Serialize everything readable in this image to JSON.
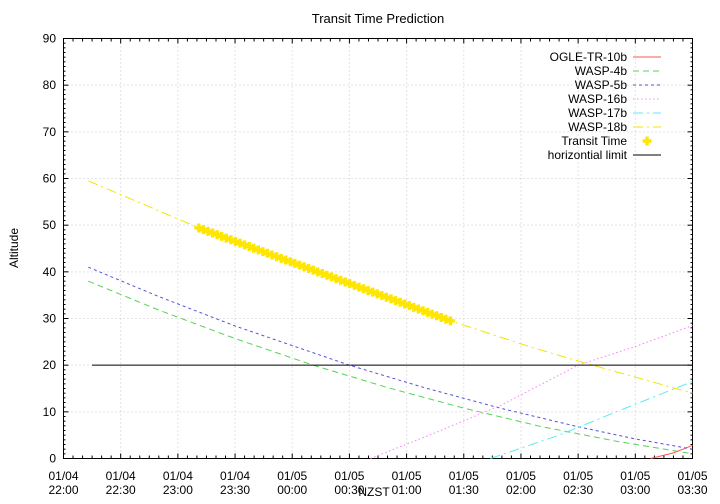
{
  "chart_data": {
    "type": "line",
    "title": "Transit Time Prediction",
    "xlabel": "NZST",
    "ylabel": "Altitude",
    "grid": true,
    "legend_position": "top-right-inside",
    "x_axis": {
      "unit": "minutes since 01/04 22:00 NZST",
      "min": 0,
      "max": 330,
      "major_tick_minutes": 30,
      "minor_tick_minutes": 5,
      "tick_labels": [
        {
          "line1": "01/04",
          "line2": "22:00"
        },
        {
          "line1": "01/04",
          "line2": "22:30"
        },
        {
          "line1": "01/04",
          "line2": "23:00"
        },
        {
          "line1": "01/04",
          "line2": "23:30"
        },
        {
          "line1": "01/05",
          "line2": "00:00"
        },
        {
          "line1": "01/05",
          "line2": "00:30"
        },
        {
          "line1": "01/05",
          "line2": "01:00"
        },
        {
          "line1": "01/05",
          "line2": "01:30"
        },
        {
          "line1": "01/05",
          "line2": "02:00"
        },
        {
          "line1": "01/05",
          "line2": "02:30"
        },
        {
          "line1": "01/05",
          "line2": "03:00"
        },
        {
          "line1": "01/05",
          "line2": "03:30"
        }
      ]
    },
    "y_axis": {
      "min": 0,
      "max": 90,
      "major_tick": 10,
      "minor_tick": 1,
      "tick_labels": [
        "0",
        "10",
        "20",
        "30",
        "40",
        "50",
        "60",
        "70",
        "80",
        "90"
      ]
    },
    "colors": {
      "grid": "#c8c8c8",
      "axis": "#000000",
      "transit_marker": "#ffe600"
    },
    "series": [
      {
        "name": "OGLE-TR-10b",
        "color": "#ff5555",
        "dash": "",
        "points": [
          [
            308,
            0
          ],
          [
            320,
            1.2
          ],
          [
            330,
            2.8
          ]
        ]
      },
      {
        "name": "WASP-4b",
        "color": "#57d257",
        "dash": "6,4",
        "points": [
          [
            13,
            38
          ],
          [
            50,
            31.8
          ],
          [
            90,
            25.7
          ],
          [
            131,
            20
          ],
          [
            170,
            15.2
          ],
          [
            210,
            10.8
          ],
          [
            250,
            6.9
          ],
          [
            290,
            3.7
          ],
          [
            330,
            1
          ]
        ]
      },
      {
        "name": "WASP-5b",
        "color": "#5353dc",
        "dash": "3,3",
        "points": [
          [
            13,
            41
          ],
          [
            50,
            34.7
          ],
          [
            90,
            28.4
          ],
          [
            150,
            20
          ],
          [
            190,
            15.1
          ],
          [
            230,
            10.7
          ],
          [
            270,
            6.8
          ],
          [
            300,
            4.2
          ],
          [
            330,
            2
          ]
        ]
      },
      {
        "name": "WASP-16b",
        "color": "#ff7dff",
        "dash": "1.5,2.5",
        "points": [
          [
            161,
            0
          ],
          [
            195,
            5.5
          ],
          [
            230,
            11.5
          ],
          [
            270,
            20
          ],
          [
            300,
            24
          ],
          [
            330,
            28.5
          ]
        ]
      },
      {
        "name": "WASP-17b",
        "color": "#59eded",
        "dash": "10,4,2,4",
        "points": [
          [
            224,
            0
          ],
          [
            260,
            5
          ],
          [
            290,
            10
          ],
          [
            330,
            16.5
          ]
        ]
      },
      {
        "name": "WASP-18b",
        "color": "#efe600",
        "dash": "10,4,2,4",
        "points": [
          [
            13,
            59.5
          ],
          [
            70,
            49.6
          ],
          [
            120,
            41.6
          ],
          [
            160,
            35.5
          ],
          [
            203,
            29.5
          ],
          [
            245,
            23.9
          ],
          [
            275,
            20.3
          ],
          [
            330,
            14
          ]
        ]
      },
      {
        "name": "Transit Time",
        "color": "#ffe600",
        "marker": "filled-plus",
        "start": [
          71,
          49.4
        ],
        "end": [
          203,
          29.5
        ],
        "count": 56
      },
      {
        "name": "horizontial limit",
        "color": "#000000",
        "dash": "",
        "points": [
          [
            15,
            20
          ],
          [
            330,
            20
          ]
        ]
      }
    ]
  }
}
